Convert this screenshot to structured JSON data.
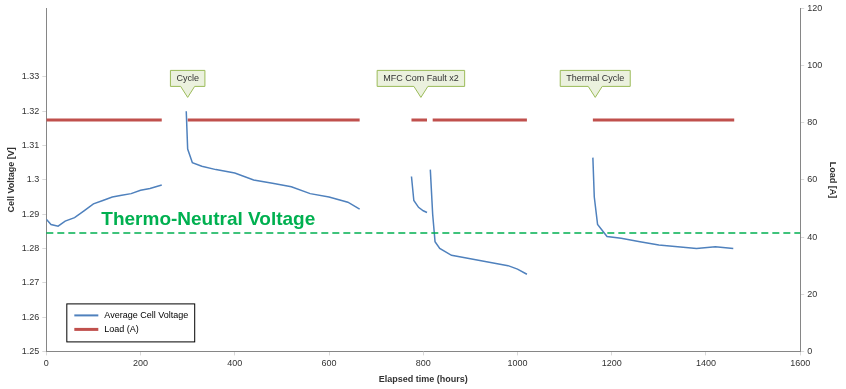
{
  "chart_data": {
    "type": "line",
    "x_label": "Elapsed time (hours)",
    "y_label": "Cell Voltage [V]",
    "y2_label": "Load [A]",
    "xlim": [
      0,
      1600
    ],
    "xticks": [
      0,
      200,
      400,
      600,
      800,
      1000,
      1200,
      1400,
      1600
    ],
    "ylim": [
      1.25,
      1.35
    ],
    "yticks": [
      1.25,
      1.26,
      1.27,
      1.28,
      1.29,
      1.3,
      1.31,
      1.32,
      1.33
    ],
    "y2lim": [
      0,
      120
    ],
    "y2ticks": [
      0,
      20,
      40,
      60,
      80,
      100,
      120
    ],
    "grid": false,
    "legend": "lower left",
    "series": [
      {
        "name": "Average Cell Voltage",
        "color": "#4f81bd",
        "line_style": "solid",
        "x": [
          0,
          10,
          25,
          40,
          60,
          80,
          100,
          120,
          140,
          160,
          180,
          200,
          220,
          245,
          270,
          297,
          300,
          310,
          330,
          360,
          400,
          440,
          480,
          520,
          560,
          600,
          640,
          665,
          720,
          775,
          780,
          790,
          800,
          808,
          812,
          815,
          820,
          825,
          835,
          860,
          900,
          940,
          980,
          1000,
          1020,
          1090,
          1160,
          1163,
          1170,
          1190,
          1220,
          1260,
          1300,
          1340,
          1380,
          1420,
          1458
        ],
        "values": [
          1.2885,
          1.287,
          1.2865,
          1.288,
          1.289,
          1.291,
          1.293,
          1.294,
          1.295,
          1.2955,
          1.296,
          1.297,
          1.2975,
          1.2985,
          null,
          1.32,
          1.309,
          1.305,
          1.304,
          1.303,
          1.302,
          1.3,
          1.299,
          1.298,
          1.296,
          1.295,
          1.2935,
          1.2915,
          null,
          1.301,
          1.294,
          1.292,
          1.291,
          1.2905,
          null,
          1.303,
          1.29,
          1.282,
          1.28,
          1.278,
          1.277,
          1.276,
          1.275,
          1.274,
          1.2725,
          null,
          1.3065,
          1.295,
          1.287,
          1.2835,
          1.283,
          1.282,
          1.281,
          1.2805,
          1.28,
          1.2805,
          1.28
        ]
      },
      {
        "name": "Load (A)",
        "color": "#c0504d",
        "axis": "y2",
        "line_style": "solid",
        "x": [
          0,
          245,
          270,
          300,
          665,
          720,
          775,
          808,
          812,
          820,
          1020,
          1090,
          1160,
          1460
        ],
        "values": [
          81,
          81,
          null,
          81,
          81,
          null,
          81,
          81,
          null,
          81,
          81,
          null,
          81,
          81
        ]
      }
    ],
    "annotations": [
      {
        "text": "Cycle",
        "x": 300
      },
      {
        "text": "MFC Com Fault x2",
        "x": 795
      },
      {
        "text": "Thermal Cycle",
        "x": 1165
      },
      {
        "text": "Thermo-Neutral Voltage",
        "y": 1.2845,
        "color": "#00b050",
        "line_style": "dashed"
      }
    ]
  }
}
